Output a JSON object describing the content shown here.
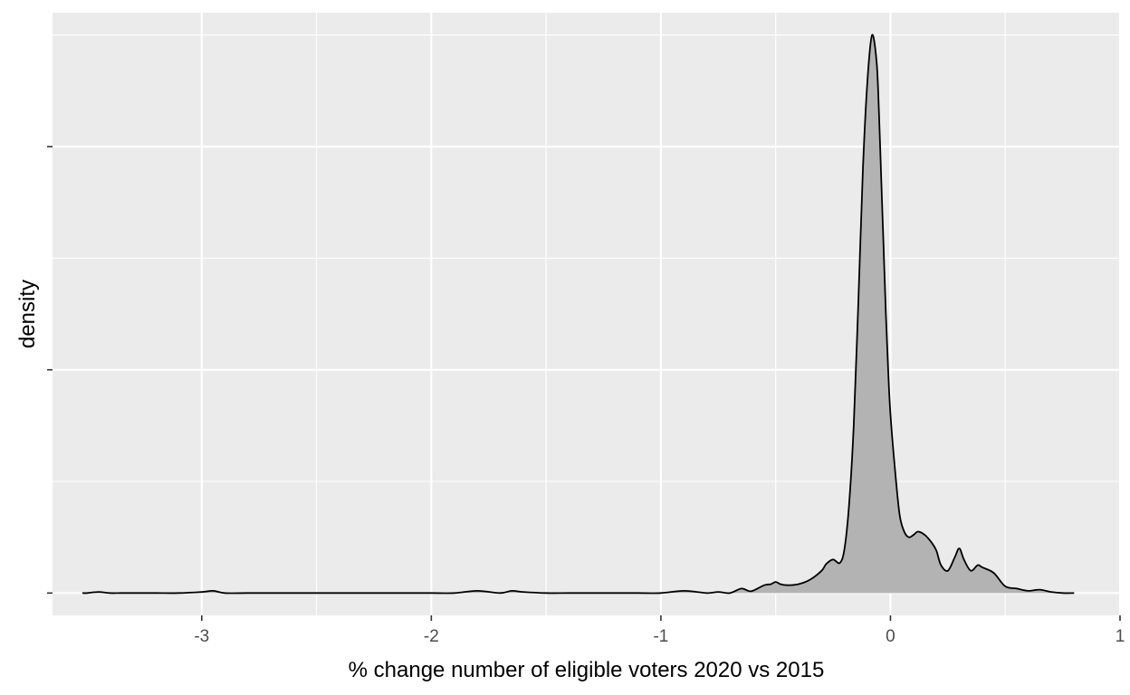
{
  "chart_data": {
    "type": "area",
    "subtype": "density",
    "title": "",
    "xlabel": "% change number of eligible voters 2020 vs 2015",
    "ylabel": "density",
    "xlim": [
      -3.65,
      1.0
    ],
    "ylim": [
      -0.02,
      0.52
    ],
    "x_ticks": [
      -3,
      -2,
      -1,
      0,
      1
    ],
    "x_tick_labels": [
      "-3",
      "-2",
      "-1",
      "0",
      "1"
    ],
    "y_ticks": [
      0,
      0.2,
      0.4
    ],
    "y_tick_labels": [
      "",
      "",
      ""
    ],
    "grid": true,
    "legend": "none",
    "fill_color": "#b3b3b3",
    "line_color": "#000000",
    "panel_color": "#ebebeb",
    "x": [
      -3.52,
      -3.5,
      -3.45,
      -3.4,
      -3.35,
      -3.3,
      -3.2,
      -3.1,
      -3.0,
      -2.95,
      -2.9,
      -2.8,
      -2.7,
      -2.6,
      -2.5,
      -2.4,
      -2.3,
      -2.2,
      -2.1,
      -2.0,
      -1.9,
      -1.8,
      -1.7,
      -1.65,
      -1.6,
      -1.5,
      -1.4,
      -1.3,
      -1.2,
      -1.1,
      -1.0,
      -0.9,
      -0.8,
      -0.75,
      -0.7,
      -0.65,
      -0.62,
      -0.6,
      -0.55,
      -0.52,
      -0.5,
      -0.48,
      -0.45,
      -0.4,
      -0.35,
      -0.3,
      -0.28,
      -0.25,
      -0.22,
      -0.2,
      -0.18,
      -0.16,
      -0.14,
      -0.12,
      -0.1,
      -0.08,
      -0.06,
      -0.05,
      -0.04,
      -0.03,
      -0.02,
      -0.01,
      0.0,
      0.02,
      0.04,
      0.06,
      0.08,
      0.1,
      0.12,
      0.15,
      0.18,
      0.2,
      0.22,
      0.25,
      0.28,
      0.3,
      0.32,
      0.35,
      0.38,
      0.4,
      0.45,
      0.5,
      0.55,
      0.6,
      0.65,
      0.7,
      0.75,
      0.8
    ],
    "y": [
      0.0,
      0.0,
      0.001,
      0.0,
      0.0,
      0.0,
      0.0,
      0.0,
      0.001,
      0.002,
      0.0,
      0.0,
      0.0,
      0.0,
      0.0,
      0.0,
      0.0,
      0.0,
      0.0,
      0.0,
      0.0,
      0.002,
      0.0,
      0.002,
      0.001,
      0.0,
      0.0,
      0.0,
      0.0,
      0.0,
      0.0,
      0.002,
      0.0,
      0.001,
      0.0,
      0.004,
      0.002,
      0.002,
      0.007,
      0.008,
      0.01,
      0.008,
      0.007,
      0.008,
      0.012,
      0.02,
      0.026,
      0.03,
      0.027,
      0.04,
      0.08,
      0.15,
      0.26,
      0.38,
      0.46,
      0.5,
      0.475,
      0.43,
      0.37,
      0.31,
      0.25,
      0.2,
      0.16,
      0.11,
      0.07,
      0.055,
      0.05,
      0.052,
      0.055,
      0.052,
      0.045,
      0.038,
      0.025,
      0.02,
      0.032,
      0.04,
      0.03,
      0.02,
      0.025,
      0.023,
      0.018,
      0.006,
      0.004,
      0.002,
      0.003,
      0.001,
      0.0,
      0.0
    ]
  }
}
